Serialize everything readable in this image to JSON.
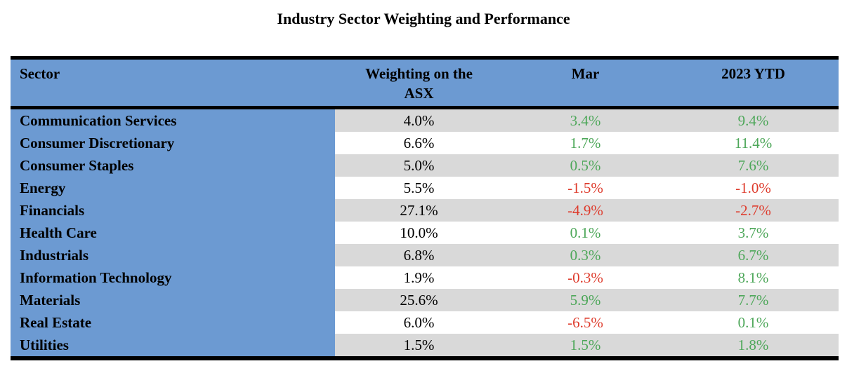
{
  "title": "Industry Sector Weighting and Performance",
  "colors": {
    "header_blue": "#6C9AD2",
    "stripe_gray": "#D9D9D9",
    "positive_green": "#4DA759",
    "negative_red": "#DE3B2C"
  },
  "table": {
    "columns": [
      "Sector",
      "Weighting on the ASX",
      "Mar",
      "2023 YTD"
    ],
    "rows": [
      {
        "sector": "Communication Services",
        "weighting": "4.0%",
        "mar": "3.4%",
        "mar_trend": "positive",
        "ytd": "9.4%",
        "ytd_trend": "positive"
      },
      {
        "sector": "Consumer Discretionary",
        "weighting": "6.6%",
        "mar": "1.7%",
        "mar_trend": "positive",
        "ytd": "11.4%",
        "ytd_trend": "positive"
      },
      {
        "sector": "Consumer Staples",
        "weighting": "5.0%",
        "mar": "0.5%",
        "mar_trend": "positive",
        "ytd": "7.6%",
        "ytd_trend": "positive"
      },
      {
        "sector": "Energy",
        "weighting": "5.5%",
        "mar": "-1.5%",
        "mar_trend": "negative",
        "ytd": "-1.0%",
        "ytd_trend": "negative"
      },
      {
        "sector": "Financials",
        "weighting": "27.1%",
        "mar": "-4.9%",
        "mar_trend": "negative",
        "ytd": "-2.7%",
        "ytd_trend": "negative"
      },
      {
        "sector": "Health Care",
        "weighting": "10.0%",
        "mar": "0.1%",
        "mar_trend": "positive",
        "ytd": "3.7%",
        "ytd_trend": "positive"
      },
      {
        "sector": "Industrials",
        "weighting": "6.8%",
        "mar": "0.3%",
        "mar_trend": "positive",
        "ytd": "6.7%",
        "ytd_trend": "positive"
      },
      {
        "sector": "Information Technology",
        "weighting": "1.9%",
        "mar": "-0.3%",
        "mar_trend": "negative",
        "ytd": "8.1%",
        "ytd_trend": "positive"
      },
      {
        "sector": "Materials",
        "weighting": "25.6%",
        "mar": "5.9%",
        "mar_trend": "positive",
        "ytd": "7.7%",
        "ytd_trend": "positive"
      },
      {
        "sector": "Real Estate",
        "weighting": "6.0%",
        "mar": "-6.5%",
        "mar_trend": "negative",
        "ytd": "0.1%",
        "ytd_trend": "positive"
      },
      {
        "sector": "Utilities",
        "weighting": "1.5%",
        "mar": "1.5%",
        "mar_trend": "positive",
        "ytd": "1.8%",
        "ytd_trend": "positive"
      }
    ]
  }
}
